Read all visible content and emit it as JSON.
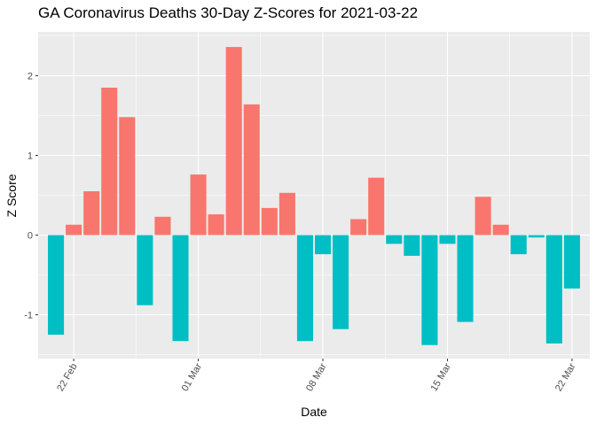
{
  "chart_data": {
    "type": "bar",
    "title": "GA Coronavirus Deaths 30-Day Z-Scores for 2021-03-22",
    "xlabel": "Date",
    "ylabel": "Z Score",
    "x_tick_labels": [
      "22 Feb",
      "01 Mar",
      "08 Mar",
      "15 Mar",
      "22 Mar"
    ],
    "x_tick_dates": [
      "2021-02-22",
      "2021-03-01",
      "2021-03-08",
      "2021-03-15",
      "2021-03-22"
    ],
    "y_ticks": [
      -1,
      0,
      1,
      2
    ],
    "ylim": [
      -1.55,
      2.55
    ],
    "xlim": [
      "2021-02-20",
      "2021-03-23"
    ],
    "grid": true,
    "legend": "none",
    "colors": {
      "positive": "#F8766D",
      "negative": "#00BFC4",
      "panel": "#EBEBEB",
      "grid": "#FFFFFF"
    },
    "x": [
      "2021-02-21",
      "2021-02-22",
      "2021-02-23",
      "2021-02-24",
      "2021-02-25",
      "2021-02-26",
      "2021-02-27",
      "2021-02-28",
      "2021-03-01",
      "2021-03-02",
      "2021-03-03",
      "2021-03-04",
      "2021-03-05",
      "2021-03-06",
      "2021-03-07",
      "2021-03-08",
      "2021-03-09",
      "2021-03-10",
      "2021-03-11",
      "2021-03-12",
      "2021-03-13",
      "2021-03-14",
      "2021-03-15",
      "2021-03-16",
      "2021-03-17",
      "2021-03-18",
      "2021-03-19",
      "2021-03-20",
      "2021-03-21",
      "2021-03-22"
    ],
    "values": [
      -1.25,
      0.13,
      0.55,
      1.85,
      1.48,
      -0.88,
      0.23,
      -1.33,
      0.76,
      0.26,
      2.36,
      1.64,
      0.34,
      0.53,
      -1.33,
      -0.24,
      -1.18,
      0.2,
      0.72,
      -0.11,
      -0.26,
      -1.38,
      -0.11,
      -1.09,
      0.48,
      0.13,
      -0.24,
      -0.03,
      -1.36,
      -0.67
    ]
  }
}
